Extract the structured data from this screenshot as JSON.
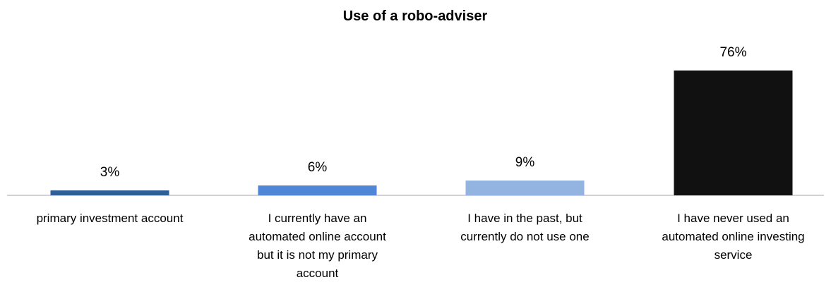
{
  "chart_data": {
    "type": "bar",
    "title": "Use of a robo-adviser",
    "xlabel": "",
    "ylabel": "",
    "categories": [
      "primary investment account",
      "I currently have an automated online account but it is not my primary account",
      "I have in the past, but currently do not use one",
      "I have never used an automated online investing service"
    ],
    "category_lines": [
      [
        "primary investment account"
      ],
      [
        "I currently have an",
        "automated online account",
        "but it is not my primary",
        "account"
      ],
      [
        "I have in the past, but",
        "currently do not use one"
      ],
      [
        "I have never used an",
        "automated online investing",
        "service"
      ]
    ],
    "values": [
      3,
      6,
      9,
      76
    ],
    "data_labels": [
      "3%",
      "6%",
      "9%",
      "76%"
    ],
    "colors": [
      "#2f5f95",
      "#4f86d6",
      "#93b3e0",
      "#111111"
    ],
    "ylim": [
      0,
      76
    ],
    "grid": false,
    "legend": "none"
  }
}
